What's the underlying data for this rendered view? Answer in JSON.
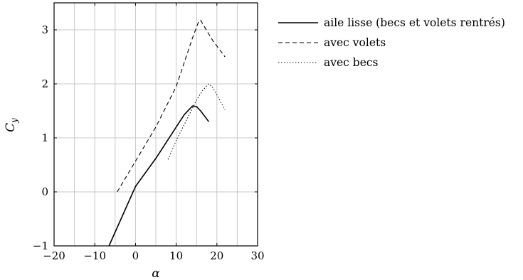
{
  "chart_data": {
    "type": "line",
    "xlabel": "α",
    "ylabel_main": "C",
    "ylabel_sub": "y",
    "xlim": [
      -20,
      30
    ],
    "ylim": [
      -1,
      3.5
    ],
    "grid": true,
    "legend_position": "outside-right-top",
    "xticks": [
      -20,
      -10,
      0,
      10,
      20,
      30
    ],
    "yticks": [
      -1,
      0,
      1,
      2,
      3
    ],
    "xtick_labels": [
      "−20",
      "−10",
      "0",
      "10",
      "20",
      "30"
    ],
    "ytick_labels": [
      "−1",
      "0",
      "1",
      "2",
      "3"
    ],
    "series": [
      {
        "name": "aile lisse (becs et volets rentrés)",
        "style": "solid",
        "points": [
          [
            -6.5,
            -1.0
          ],
          [
            0,
            0.1
          ],
          [
            5,
            0.62
          ],
          [
            10,
            1.2
          ],
          [
            12,
            1.43
          ],
          [
            14,
            1.59
          ],
          [
            15,
            1.58
          ],
          [
            16,
            1.5
          ],
          [
            18,
            1.3
          ]
        ]
      },
      {
        "name": "avec volets",
        "style": "dashed",
        "points": [
          [
            -4.5,
            0.0
          ],
          [
            5,
            1.2
          ],
          [
            10,
            1.95
          ],
          [
            14,
            2.85
          ],
          [
            15.5,
            3.15
          ],
          [
            16,
            3.18
          ],
          [
            17,
            3.05
          ],
          [
            19,
            2.8
          ],
          [
            22,
            2.5
          ]
        ]
      },
      {
        "name": "avec becs",
        "style": "dotted",
        "points": [
          [
            8,
            0.6
          ],
          [
            10,
            0.95
          ],
          [
            13,
            1.4
          ],
          [
            15,
            1.7
          ],
          [
            16.5,
            1.88
          ],
          [
            18,
            2.0
          ],
          [
            19,
            1.93
          ],
          [
            22,
            1.52
          ]
        ]
      }
    ]
  }
}
